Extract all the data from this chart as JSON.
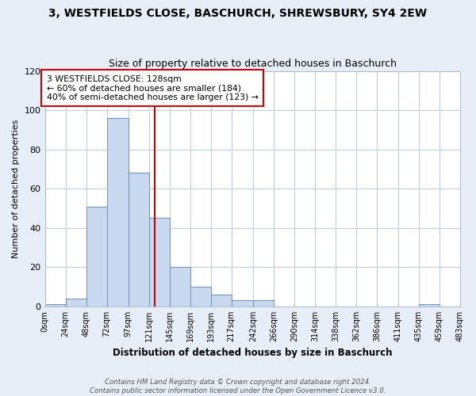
{
  "title": "3, WESTFIELDS CLOSE, BASCHURCH, SHREWSBURY, SY4 2EW",
  "subtitle": "Size of property relative to detached houses in Baschurch",
  "xlabel": "Distribution of detached houses by size in Baschurch",
  "ylabel": "Number of detached properties",
  "bar_color": "#c8d8ee",
  "bar_edge_color": "#7090b8",
  "vline_x": 128,
  "vline_color": "#cc0000",
  "bin_edges": [
    0,
    24,
    48,
    72,
    97,
    121,
    145,
    169,
    193,
    217,
    242,
    266,
    290,
    314,
    338,
    362,
    386,
    411,
    435,
    459,
    483
  ],
  "bar_heights": [
    1,
    4,
    51,
    96,
    68,
    45,
    20,
    10,
    6,
    3,
    3,
    0,
    0,
    0,
    0,
    0,
    0,
    0,
    1,
    0
  ],
  "tick_labels": [
    "0sqm",
    "24sqm",
    "48sqm",
    "72sqm",
    "97sqm",
    "121sqm",
    "145sqm",
    "169sqm",
    "193sqm",
    "217sqm",
    "242sqm",
    "266sqm",
    "290sqm",
    "314sqm",
    "338sqm",
    "362sqm",
    "386sqm",
    "411sqm",
    "435sqm",
    "459sqm",
    "483sqm"
  ],
  "ylim": [
    0,
    120
  ],
  "yticks": [
    0,
    20,
    40,
    60,
    80,
    100,
    120
  ],
  "annotation_line1": "3 WESTFIELDS CLOSE: 128sqm",
  "annotation_line2": "← 60% of detached houses are smaller (184)",
  "annotation_line3": "40% of semi-detached houses are larger (123) →",
  "annotation_box_color": "white",
  "annotation_box_edge": "#cc0000",
  "footer_text": "Contains HM Land Registry data © Crown copyright and database right 2024.\nContains public sector information licensed under the Open Government Licence v3.0.",
  "background_color": "#e8eef8",
  "plot_background_color": "white",
  "grid_color": "#c0cce0"
}
